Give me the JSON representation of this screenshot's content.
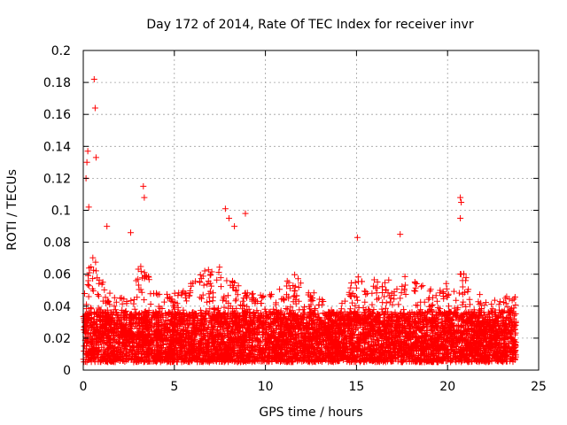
{
  "chart_data": {
    "type": "scatter",
    "title": "Day 172 of 2014, Rate Of TEC Index for receiver invr",
    "xlabel": "GPS time / hours",
    "ylabel": "ROTI / TECUs",
    "xlim": [
      0,
      25
    ],
    "ylim": [
      0,
      0.2
    ],
    "xticks": [
      "0",
      "5",
      "10",
      "15",
      "20",
      "25"
    ],
    "yticks": [
      "0",
      "0.02",
      "0.04",
      "0.06",
      "0.08",
      "0.1",
      "0.12",
      "0.14",
      "0.16",
      "0.18",
      "0.2"
    ],
    "grid": true,
    "marker": "+",
    "color": "#ff0000",
    "data_extent_hours": [
      0,
      23.75
    ],
    "baseline_band": [
      0.005,
      0.04
    ],
    "notable_points": [
      {
        "x": 0.6,
        "y": 0.182
      },
      {
        "x": 0.65,
        "y": 0.164
      },
      {
        "x": 0.25,
        "y": 0.137
      },
      {
        "x": 0.2,
        "y": 0.13
      },
      {
        "x": 0.7,
        "y": 0.133
      },
      {
        "x": 0.15,
        "y": 0.12
      },
      {
        "x": 0.3,
        "y": 0.102
      },
      {
        "x": 3.3,
        "y": 0.115
      },
      {
        "x": 3.35,
        "y": 0.108
      },
      {
        "x": 7.8,
        "y": 0.101
      },
      {
        "x": 8.0,
        "y": 0.095
      },
      {
        "x": 8.3,
        "y": 0.09
      },
      {
        "x": 8.9,
        "y": 0.098
      },
      {
        "x": 20.7,
        "y": 0.108
      },
      {
        "x": 20.75,
        "y": 0.105
      },
      {
        "x": 20.7,
        "y": 0.095
      },
      {
        "x": 15.05,
        "y": 0.083
      },
      {
        "x": 17.4,
        "y": 0.085
      },
      {
        "x": 1.3,
        "y": 0.09
      },
      {
        "x": 2.6,
        "y": 0.086
      }
    ]
  }
}
